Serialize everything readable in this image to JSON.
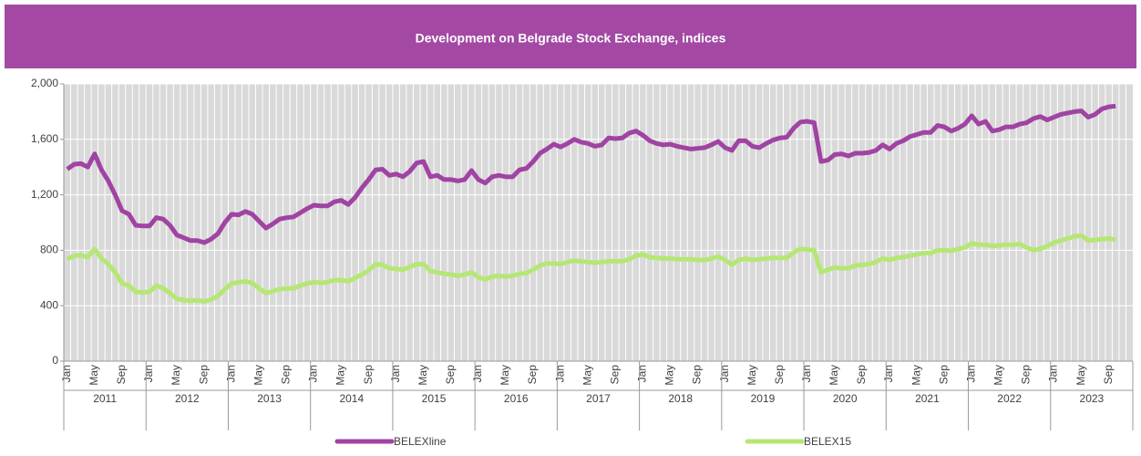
{
  "chart_data": {
    "type": "line",
    "title": "Development on Belgrade Stock Exchange, indices",
    "categories": [
      "Jan",
      null,
      null,
      null,
      "May",
      null,
      null,
      null,
      "Sep",
      null,
      null,
      null,
      "Jan",
      null,
      null,
      null,
      "May",
      null,
      null,
      null,
      "Sep",
      null,
      null,
      null,
      "Jan",
      null,
      null,
      null,
      "May",
      null,
      null,
      null,
      "Sep",
      null,
      null,
      null,
      "Jan",
      null,
      null,
      null,
      "May",
      null,
      null,
      null,
      "Sep",
      null,
      null,
      null,
      "Jan",
      null,
      null,
      null,
      "May",
      null,
      null,
      null,
      "Sep",
      null,
      null,
      null,
      "Jan",
      null,
      null,
      null,
      "May",
      null,
      null,
      null,
      "Sep",
      null,
      null,
      null,
      "Jan",
      null,
      null,
      null,
      "May",
      null,
      null,
      null,
      "Sep",
      null,
      null,
      null,
      "Jan",
      null,
      null,
      null,
      "May",
      null,
      null,
      null,
      "Sep",
      null,
      null,
      null,
      "Jan",
      null,
      null,
      null,
      "May",
      null,
      null,
      null,
      "Sep",
      null,
      null,
      null,
      "Jan",
      null,
      null,
      null,
      "May",
      null,
      null,
      null,
      "Sep",
      null,
      null,
      null,
      "Jan",
      null,
      null,
      null,
      "May",
      null,
      null,
      null,
      "Sep",
      null,
      null,
      null,
      "Jan",
      null,
      null,
      null,
      "May",
      null,
      null,
      null,
      "Sep",
      null,
      null,
      null,
      "Jan",
      null,
      null,
      null,
      "May",
      null,
      null,
      null,
      "Sep",
      null,
      null,
      null
    ],
    "years": [
      "2011",
      "2012",
      "2013",
      "2014",
      "2015",
      "2016",
      "2017",
      "2018",
      "2019",
      "2020",
      "2021",
      "2022",
      "2023"
    ],
    "series": [
      {
        "name": "BELEXline",
        "color": "#a043a3",
        "values": [
          1385,
          1420,
          1425,
          1400,
          1495,
          1380,
          1300,
          1200,
          1085,
          1060,
          980,
          975,
          975,
          1035,
          1025,
          980,
          910,
          890,
          870,
          870,
          855,
          880,
          920,
          1000,
          1060,
          1055,
          1080,
          1060,
          1010,
          960,
          990,
          1025,
          1035,
          1040,
          1070,
          1100,
          1125,
          1120,
          1120,
          1150,
          1160,
          1130,
          1180,
          1250,
          1310,
          1380,
          1385,
          1340,
          1350,
          1330,
          1370,
          1430,
          1440,
          1330,
          1340,
          1310,
          1310,
          1300,
          1310,
          1375,
          1310,
          1285,
          1330,
          1340,
          1330,
          1330,
          1380,
          1390,
          1440,
          1500,
          1530,
          1565,
          1545,
          1570,
          1600,
          1580,
          1570,
          1550,
          1560,
          1610,
          1605,
          1610,
          1645,
          1660,
          1630,
          1590,
          1570,
          1560,
          1565,
          1550,
          1540,
          1530,
          1535,
          1540,
          1560,
          1585,
          1540,
          1520,
          1590,
          1590,
          1550,
          1540,
          1570,
          1595,
          1610,
          1615,
          1680,
          1725,
          1730,
          1720,
          1440,
          1450,
          1490,
          1495,
          1480,
          1500,
          1500,
          1505,
          1520,
          1560,
          1530,
          1570,
          1590,
          1620,
          1635,
          1650,
          1650,
          1700,
          1690,
          1660,
          1680,
          1710,
          1770,
          1710,
          1730,
          1660,
          1670,
          1690,
          1690,
          1710,
          1720,
          1750,
          1765,
          1740,
          1760,
          1780,
          1790,
          1800,
          1805,
          1760,
          1780,
          1820,
          1835,
          1840,
          null,
          null
        ]
      },
      {
        "name": "BELEX15",
        "color": "#b5e774",
        "values": [
          735,
          760,
          765,
          750,
          810,
          740,
          700,
          640,
          560,
          545,
          500,
          495,
          500,
          545,
          525,
          490,
          450,
          440,
          435,
          440,
          430,
          445,
          470,
          520,
          560,
          570,
          575,
          565,
          525,
          490,
          505,
          520,
          525,
          525,
          545,
          560,
          570,
          565,
          570,
          585,
          585,
          575,
          600,
          625,
          655,
          700,
          695,
          670,
          665,
          660,
          680,
          700,
          700,
          650,
          640,
          630,
          625,
          615,
          625,
          640,
          605,
          590,
          610,
          615,
          610,
          615,
          630,
          635,
          660,
          690,
          705,
          705,
          700,
          715,
          725,
          720,
          715,
          710,
          715,
          720,
          720,
          720,
          735,
          760,
          770,
          750,
          745,
          740,
          740,
          735,
          735,
          735,
          730,
          730,
          740,
          755,
          730,
          695,
          730,
          740,
          730,
          735,
          740,
          745,
          745,
          745,
          785,
          810,
          805,
          800,
          640,
          660,
          675,
          670,
          670,
          690,
          695,
          700,
          715,
          740,
          730,
          745,
          750,
          760,
          770,
          780,
          780,
          800,
          800,
          795,
          810,
          820,
          850,
          840,
          840,
          830,
          835,
          840,
          840,
          845,
          820,
          800,
          810,
          830,
          855,
          870,
          885,
          900,
          905,
          870,
          875,
          880,
          885,
          875,
          null,
          null
        ]
      }
    ],
    "ylim": [
      0,
      2000
    ],
    "yticks": [
      0,
      {
        "value": 400,
        "label": "400"
      },
      {
        "value": 800,
        "label": "800"
      },
      {
        "value": 1200,
        "label": "1,200"
      },
      {
        "value": 1600,
        "label": "1,600"
      },
      {
        "value": 2000,
        "label": "2,000"
      }
    ],
    "grid": true
  }
}
